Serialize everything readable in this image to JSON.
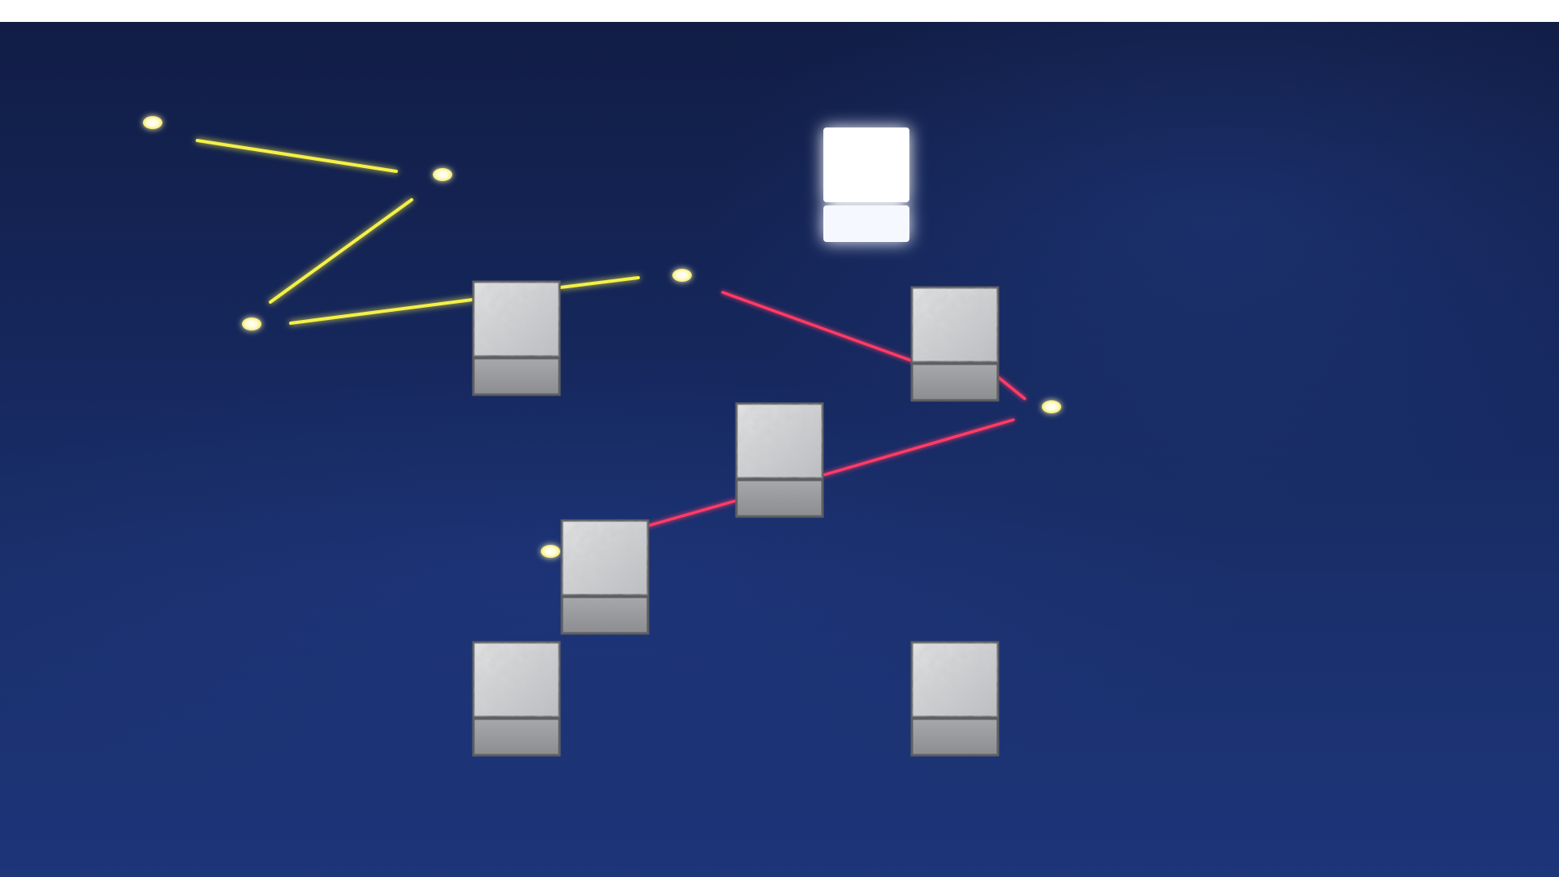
{
  "scene": {
    "title": "",
    "background_color": "#182b64",
    "laser_colors": {
      "yellow": "#f4f04a",
      "red": "#ff3a66"
    },
    "node_color": "#fffde0",
    "goal_color": "#ffffff",
    "block_texture": "crumpled-stone"
  }
}
